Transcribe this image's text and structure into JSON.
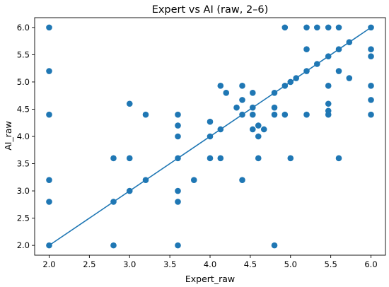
{
  "chart_data": {
    "type": "scatter",
    "title": "Expert vs AI (raw, 2–6)",
    "xlabel": "Expert_raw",
    "ylabel": "AI_raw",
    "xlim": [
      1.82,
      6.18
    ],
    "ylim": [
      1.82,
      6.18
    ],
    "xticks": [
      "2.0",
      "2.5",
      "3.0",
      "3.5",
      "4.0",
      "4.5",
      "5.0",
      "5.5",
      "6.0"
    ],
    "yticks": [
      "2.0",
      "2.5",
      "3.0",
      "3.5",
      "4.0",
      "4.5",
      "5.0",
      "5.5",
      "6.0"
    ],
    "grid": false,
    "legend": "none",
    "colors": {
      "marker": "#1f77b4",
      "line": "#1f77b4"
    },
    "series": [
      {
        "points": [
          [
            2.0,
            6.0
          ],
          [
            2.0,
            5.2
          ],
          [
            2.0,
            4.4
          ],
          [
            2.0,
            3.2
          ],
          [
            2.0,
            2.8
          ],
          [
            2.0,
            2.0
          ],
          [
            2.8,
            3.6
          ],
          [
            2.8,
            2.8
          ],
          [
            2.8,
            2.0
          ],
          [
            3.0,
            4.6
          ],
          [
            3.0,
            3.6
          ],
          [
            3.0,
            3.0
          ],
          [
            3.2,
            4.4
          ],
          [
            3.2,
            3.2
          ],
          [
            3.6,
            4.4
          ],
          [
            3.6,
            4.2
          ],
          [
            3.6,
            4.0
          ],
          [
            3.6,
            3.6
          ],
          [
            3.6,
            3.0
          ],
          [
            3.6,
            2.8
          ],
          [
            3.6,
            2.0
          ],
          [
            3.8,
            3.2
          ],
          [
            4.0,
            4.27
          ],
          [
            4.0,
            4.0
          ],
          [
            4.0,
            3.6
          ],
          [
            4.13,
            4.93
          ],
          [
            4.13,
            4.13
          ],
          [
            4.13,
            3.6
          ],
          [
            4.2,
            4.8
          ],
          [
            4.33,
            4.53
          ],
          [
            4.4,
            4.93
          ],
          [
            4.4,
            4.67
          ],
          [
            4.4,
            4.4
          ],
          [
            4.4,
            3.2
          ],
          [
            4.53,
            4.8
          ],
          [
            4.53,
            4.53
          ],
          [
            4.53,
            4.4
          ],
          [
            4.53,
            4.13
          ],
          [
            4.6,
            4.2
          ],
          [
            4.6,
            4.0
          ],
          [
            4.6,
            3.6
          ],
          [
            4.67,
            4.13
          ],
          [
            4.8,
            4.8
          ],
          [
            4.8,
            4.53
          ],
          [
            4.8,
            4.4
          ],
          [
            4.8,
            2.0
          ],
          [
            4.93,
            6.0
          ],
          [
            4.93,
            4.93
          ],
          [
            4.93,
            4.4
          ],
          [
            5.0,
            5.0
          ],
          [
            5.0,
            3.6
          ],
          [
            5.07,
            5.07
          ],
          [
            5.2,
            6.0
          ],
          [
            5.2,
            5.6
          ],
          [
            5.2,
            5.2
          ],
          [
            5.2,
            4.4
          ],
          [
            5.33,
            6.0
          ],
          [
            5.33,
            5.33
          ],
          [
            5.47,
            6.0
          ],
          [
            5.47,
            5.47
          ],
          [
            5.47,
            4.93
          ],
          [
            5.47,
            4.6
          ],
          [
            5.47,
            4.47
          ],
          [
            5.47,
            4.4
          ],
          [
            5.6,
            6.0
          ],
          [
            5.6,
            5.6
          ],
          [
            5.6,
            5.2
          ],
          [
            5.6,
            3.6
          ],
          [
            5.73,
            5.73
          ],
          [
            5.73,
            5.07
          ],
          [
            6.0,
            6.0
          ],
          [
            6.0,
            5.6
          ],
          [
            6.0,
            5.47
          ],
          [
            6.0,
            4.93
          ],
          [
            6.0,
            4.67
          ],
          [
            6.0,
            4.4
          ]
        ]
      }
    ],
    "line": {
      "points": [
        [
          2.0,
          2.0
        ],
        [
          6.0,
          6.0
        ]
      ]
    }
  }
}
